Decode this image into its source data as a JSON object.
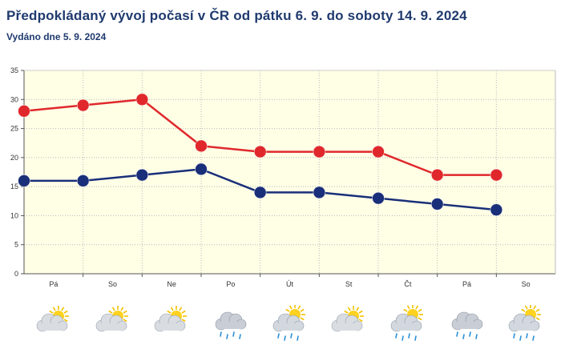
{
  "title": "Předpokládaný vývoj počasí v ČR od pátku 6. 9. do soboty 14. 9. 2024",
  "subtitle": "Vydáno dne 5. 9. 2024",
  "chart_data": {
    "type": "line",
    "categories": [
      "Pá",
      "So",
      "Ne",
      "Po",
      "Út",
      "St",
      "Čt",
      "Pá",
      "So"
    ],
    "ylim": [
      0,
      35
    ],
    "yticks": [
      "0",
      "5",
      "10",
      "15",
      "20",
      "25",
      "30",
      "35"
    ],
    "grid": true,
    "series": [
      {
        "values": [
          28,
          29,
          30,
          22,
          21,
          21,
          21,
          17,
          17
        ],
        "color": "#e0282c"
      },
      {
        "values": [
          16,
          16,
          17,
          18,
          14,
          14,
          13,
          12,
          11
        ],
        "color": "#1a2f7a"
      }
    ],
    "background_color": "#ffffe6",
    "weather_icons": [
      "partly-cloudy-icon",
      "partly-cloudy-icon",
      "partly-cloudy-icon",
      "rain-cloud-icon",
      "sun-rain-cloud-icon",
      "partly-cloudy-icon",
      "sun-rain-cloud-icon",
      "rain-cloud-icon",
      "sun-rain-cloud-icon"
    ]
  }
}
